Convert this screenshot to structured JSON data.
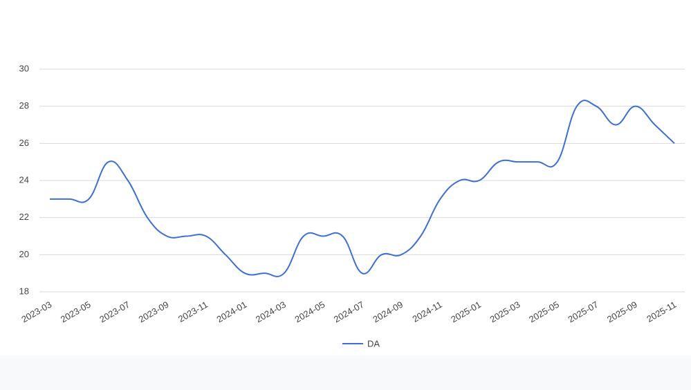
{
  "chart_data": {
    "type": "line",
    "categories": [
      "2023-03",
      null,
      "2023-05",
      null,
      "2023-07",
      null,
      "2023-09",
      null,
      "2023-11",
      null,
      "2024-01",
      null,
      "2024-03",
      null,
      "2024-05",
      null,
      "2024-07",
      null,
      "2024-09",
      null,
      "2024-11",
      null,
      "2025-01",
      null,
      "2025-03",
      null,
      "2025-05",
      null,
      "2025-07",
      null,
      "2025-09",
      null,
      "2025-11"
    ],
    "series": [
      {
        "name": "DA",
        "color": "#3b6fd4",
        "values": [
          23,
          23,
          23,
          25,
          24,
          22,
          21,
          21,
          21,
          20,
          19,
          19,
          19,
          21,
          21,
          21,
          19,
          20,
          20,
          21,
          23,
          24,
          24,
          25,
          25,
          25,
          25,
          28,
          28,
          27,
          28,
          27,
          26
        ]
      }
    ],
    "ylim": [
      18,
      30
    ],
    "yticks": [
      18,
      20,
      22,
      24,
      26,
      28,
      30
    ],
    "grid": true,
    "legend": "bottom",
    "smooth": true
  }
}
